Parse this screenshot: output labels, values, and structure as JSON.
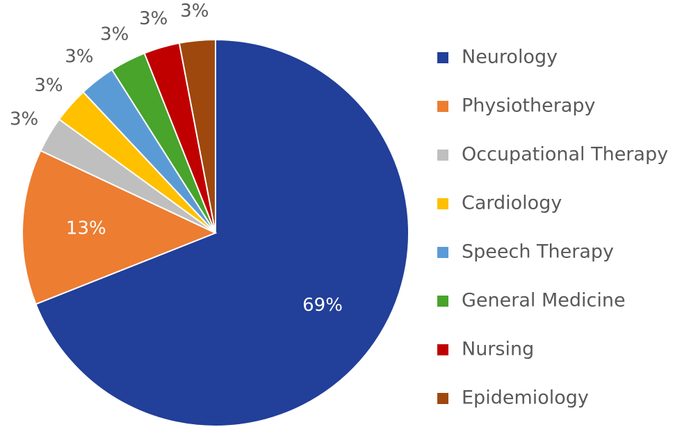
{
  "chart_data": {
    "type": "pie",
    "categories": [
      "Neurology",
      "Physiotherapy",
      "Occupational Therapy",
      "Cardiology",
      "Speech Therapy",
      "General Medicine",
      "Nursing",
      "Epidemiology"
    ],
    "values": [
      69,
      13,
      3,
      3,
      3,
      3,
      3,
      3
    ],
    "value_labels": [
      "69%",
      "13%",
      "3%",
      "3%",
      "3%",
      "3%",
      "3%",
      "3%"
    ],
    "colors": [
      "#223f99",
      "#ed7d31",
      "#bfbfbf",
      "#ffc000",
      "#5b9bd5",
      "#48a42a",
      "#c00000",
      "#9e480e"
    ],
    "legend": "right"
  }
}
